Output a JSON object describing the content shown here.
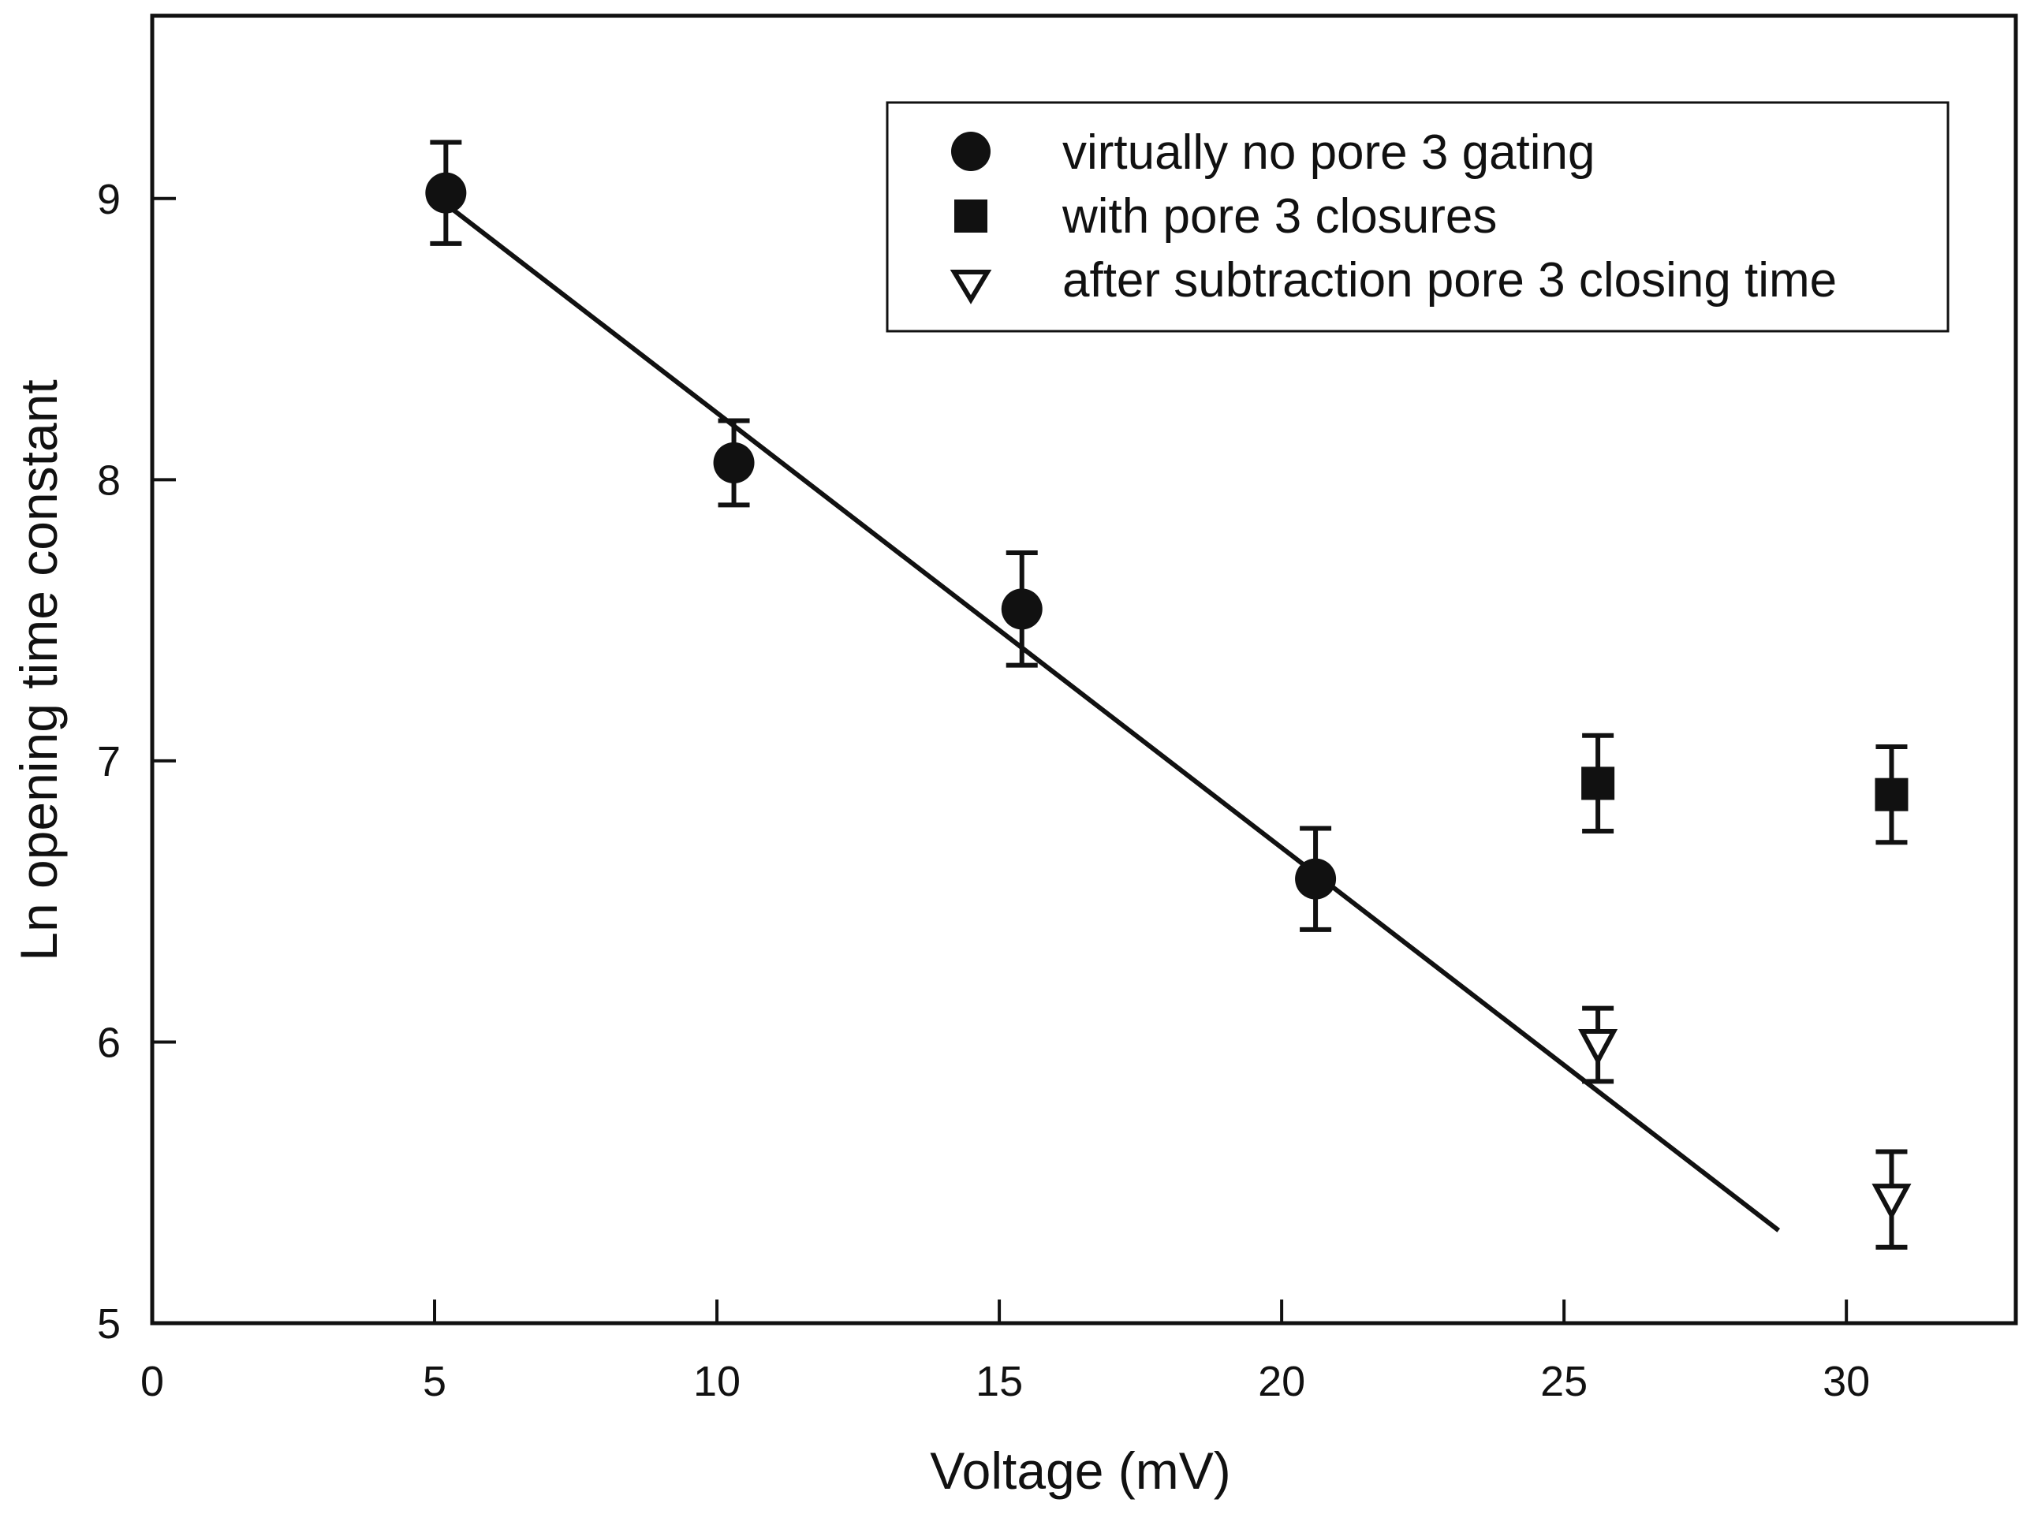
{
  "chart_data": {
    "type": "scatter",
    "title": "",
    "xlabel": "Voltage (mV)",
    "ylabel": "Ln opening time constant",
    "xlim": [
      0,
      33
    ],
    "ylim": [
      5,
      9.65
    ],
    "xticks": [
      0,
      5,
      10,
      15,
      20,
      25,
      30
    ],
    "yticks": [
      5,
      6,
      7,
      8,
      9
    ],
    "grid": false,
    "legend_position": "top-right",
    "series": [
      {
        "name": "virtually no pore 3 gating",
        "marker": "circle",
        "points": [
          {
            "x": 5.2,
            "y": 9.02,
            "err": 0.18
          },
          {
            "x": 10.3,
            "y": 8.06,
            "err": 0.15
          },
          {
            "x": 15.4,
            "y": 7.54,
            "err": 0.2
          },
          {
            "x": 20.6,
            "y": 6.58,
            "err": 0.18
          }
        ]
      },
      {
        "name": "with pore 3 closures",
        "marker": "square",
        "points": [
          {
            "x": 25.6,
            "y": 6.92,
            "err": 0.17
          },
          {
            "x": 30.8,
            "y": 6.88,
            "err": 0.17
          }
        ]
      },
      {
        "name": "after subtraction pore 3 closing time",
        "marker": "triangle-down-open",
        "points": [
          {
            "x": 25.6,
            "y": 5.99,
            "err": 0.13
          },
          {
            "x": 30.8,
            "y": 5.44,
            "err": 0.17
          }
        ]
      }
    ],
    "fit_line": {
      "x": [
        5.2,
        28.8
      ],
      "y": [
        8.98,
        5.33
      ]
    }
  }
}
